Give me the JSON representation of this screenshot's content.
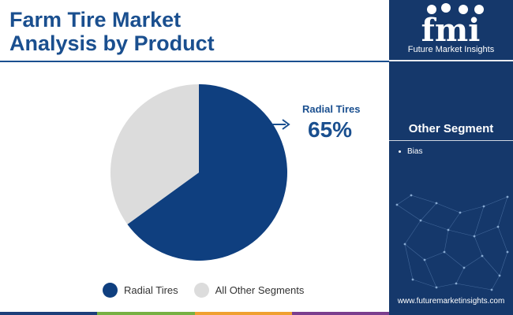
{
  "header": {
    "title_lines": [
      "Farm Tire Market",
      "Analysis by Product"
    ]
  },
  "brand": {
    "logo_text": "fmi",
    "name": "Future Market Insights",
    "website": "www.futuremarketinsights.com",
    "icons": [
      "cloud-icon",
      "hand-icon",
      "food-icon",
      "person-icon"
    ]
  },
  "sidebar": {
    "heading": "Other Segment",
    "items": [
      "Bias"
    ]
  },
  "callout": {
    "label": "Radial Tires",
    "value": "65%"
  },
  "colors": {
    "primary": "#0f3f7f",
    "secondary": "#dcdcdc",
    "title": "#1a4f8f",
    "sidebar": "#15386b",
    "bar": [
      "#1d3f7a",
      "#76b043",
      "#f0a030",
      "#7a3e8e"
    ]
  },
  "chart_data": {
    "type": "pie",
    "title": "Farm Tire Market Analysis by Product",
    "categories": [
      "Radial Tires",
      "All Other Segments"
    ],
    "values": [
      65,
      35
    ],
    "legend": "bottom",
    "start_angle_deg": 0,
    "direction": "clockwise"
  }
}
